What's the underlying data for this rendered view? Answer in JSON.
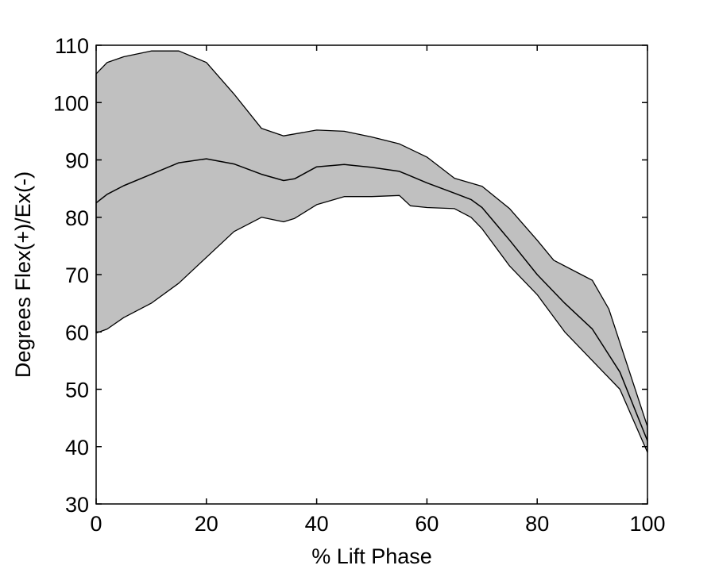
{
  "chart_data": {
    "type": "line",
    "title": "",
    "xlabel": "% Lift Phase",
    "ylabel": "Degrees Flex(+)/Ex(-)",
    "xlim": [
      0,
      100
    ],
    "ylim": [
      30,
      110
    ],
    "xticks": [
      0,
      20,
      40,
      60,
      80,
      100
    ],
    "yticks": [
      30,
      40,
      50,
      60,
      70,
      80,
      90,
      100,
      110
    ],
    "grid": false,
    "legend": "none",
    "colors": {
      "band_fill": "#c0c0c0",
      "line": "#000000",
      "axes": "#000000"
    },
    "series": [
      {
        "role": "mean",
        "x": [
          0,
          2,
          5,
          10,
          15,
          20,
          25,
          30,
          34,
          36,
          40,
          45,
          50,
          55,
          60,
          65,
          68,
          70,
          75,
          80,
          85,
          90,
          95,
          100
        ],
        "values": [
          82.5,
          84,
          85.5,
          87.5,
          89.5,
          90.2,
          89.3,
          87.5,
          86.4,
          86.7,
          88.8,
          89.2,
          88.7,
          88.0,
          86.0,
          84.2,
          83.1,
          81.7,
          76,
          70,
          65,
          60.5,
          53,
          41
        ]
      },
      {
        "role": "upper",
        "x": [
          0,
          2,
          5,
          10,
          15,
          20,
          25,
          30,
          34,
          40,
          45,
          50,
          55,
          60,
          65,
          70,
          75,
          80,
          83,
          88,
          90,
          93,
          100
        ],
        "values": [
          105,
          107,
          108,
          109,
          109,
          107,
          101.5,
          95.5,
          94.2,
          95.2,
          95,
          94,
          92.8,
          90.5,
          86.8,
          85.4,
          81.5,
          76,
          72.5,
          70,
          69,
          64,
          43.5
        ]
      },
      {
        "role": "lower",
        "x": [
          0,
          2,
          5,
          10,
          15,
          20,
          25,
          30,
          34,
          36,
          40,
          45,
          50,
          55,
          57,
          60,
          65,
          68,
          70,
          75,
          80,
          85,
          90,
          95,
          100
        ],
        "values": [
          59.8,
          60.5,
          62.5,
          65,
          68.5,
          73,
          77.5,
          80,
          79.2,
          79.8,
          82.2,
          83.6,
          83.6,
          83.8,
          82,
          81.7,
          81.5,
          80,
          78,
          71.5,
          66.5,
          60,
          55,
          50,
          39
        ]
      }
    ]
  }
}
